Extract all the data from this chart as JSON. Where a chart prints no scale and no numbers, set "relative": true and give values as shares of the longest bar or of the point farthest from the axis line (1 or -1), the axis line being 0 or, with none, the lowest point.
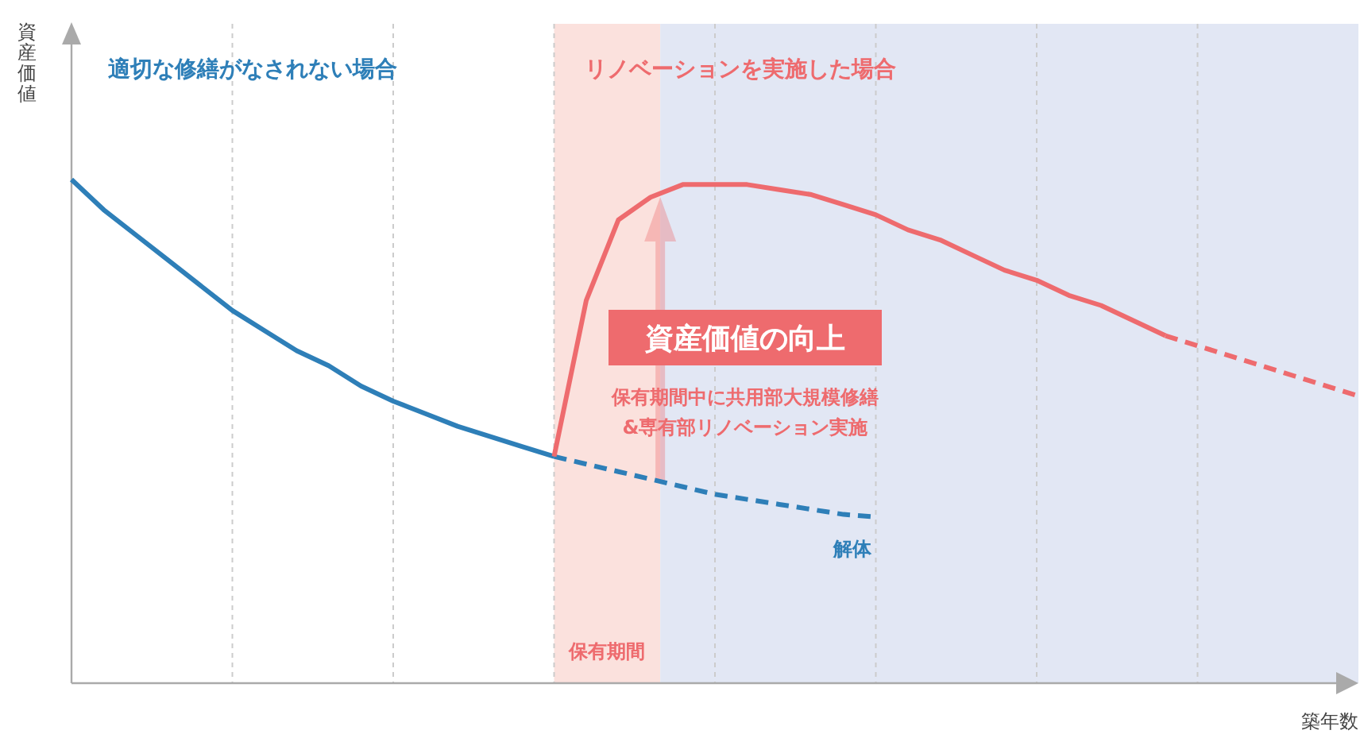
{
  "chart_data": {
    "type": "line",
    "relative": true,
    "xlabel": "築年数",
    "ylabel": "資産価値",
    "grid": "x",
    "categories": [
      null,
      null,
      null,
      null,
      null,
      null,
      null,
      null,
      null,
      null,
      null,
      null,
      null,
      null,
      null,
      null,
      null,
      null,
      null,
      null,
      null,
      null,
      null,
      null,
      null,
      null,
      null,
      null,
      null,
      null,
      null,
      null,
      null,
      null,
      null,
      null,
      null,
      null,
      null,
      null,
      null
    ],
    "series": [
      {
        "name": "適切な修繕がなされない場合",
        "color": "#2e7fb8",
        "line_style": "solid",
        "values": [
          1.0,
          0.94,
          0.89,
          0.84,
          0.79,
          0.74,
          0.7,
          0.66,
          0.63,
          0.59,
          0.56,
          0.535,
          0.51,
          0.49,
          0.47,
          0.45,
          null,
          null,
          null,
          null,
          null,
          null,
          null,
          null,
          null,
          null,
          null,
          null,
          null,
          null,
          null,
          null,
          null,
          null,
          null,
          null,
          null,
          null,
          null,
          null,
          null
        ]
      },
      {
        "color": "#2e7fb8",
        "line_style": "dashed",
        "values": [
          null,
          null,
          null,
          null,
          null,
          null,
          null,
          null,
          null,
          null,
          null,
          null,
          null,
          null,
          null,
          0.45,
          0.435,
          0.42,
          0.405,
          0.39,
          0.375,
          0.365,
          0.355,
          0.345,
          0.335,
          0.33,
          null,
          null,
          null,
          null,
          null,
          null,
          null,
          null,
          null,
          null,
          null,
          null,
          null,
          null,
          null
        ]
      },
      {
        "name": "リノベーションを実施した場合",
        "color": "#ee6b6e",
        "line_style": "solid",
        "values": [
          null,
          null,
          null,
          null,
          null,
          null,
          null,
          null,
          null,
          null,
          null,
          null,
          null,
          null,
          null,
          0.45,
          0.76,
          0.92,
          0.965,
          0.99,
          0.99,
          0.99,
          0.98,
          0.97,
          0.95,
          0.93,
          0.9,
          0.88,
          0.85,
          0.82,
          0.8,
          0.77,
          0.75,
          0.72,
          0.69,
          null,
          null,
          null,
          null,
          null,
          null
        ]
      },
      {
        "color": "#ee6b6e",
        "line_style": "dashed",
        "values": [
          null,
          null,
          null,
          null,
          null,
          null,
          null,
          null,
          null,
          null,
          null,
          null,
          null,
          null,
          null,
          null,
          null,
          null,
          null,
          null,
          null,
          null,
          null,
          null,
          null,
          null,
          null,
          null,
          null,
          null,
          null,
          null,
          null,
          null,
          0.69,
          0.67,
          0.65,
          0.63,
          0.61,
          0.59,
          0.57
        ]
      }
    ],
    "annotations": [
      "資産価値の向上",
      "保有期間中に共用部大規模修繕\n&専有部リノベーション実施",
      "解体",
      "保有期間"
    ]
  }
}
